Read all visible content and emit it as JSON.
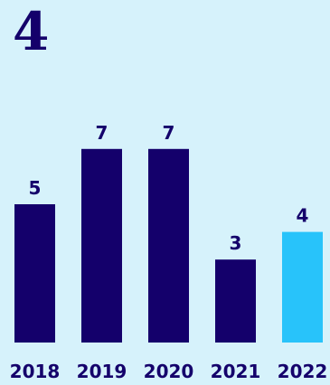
{
  "headline": "4",
  "colors": {
    "background": "#d6f2fb",
    "bar": "#14006b",
    "highlight_bar": "#28c3fa",
    "text": "#14006b"
  },
  "chart_data": {
    "type": "bar",
    "title": "",
    "xlabel": "",
    "ylabel": "",
    "categories": [
      "2018",
      "2019",
      "2020",
      "2021",
      "2022"
    ],
    "values": [
      5,
      7,
      7,
      3,
      4
    ],
    "highlighted_category": "2022",
    "ylim": [
      0,
      7
    ],
    "grid": false,
    "legend": "none"
  }
}
